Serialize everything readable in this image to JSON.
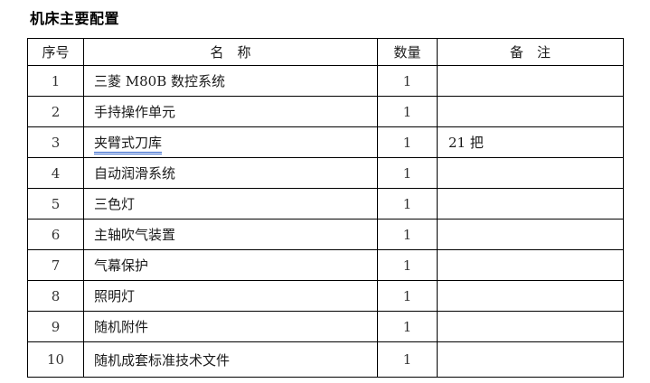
{
  "title": "机床主要配置",
  "table": {
    "headers": {
      "no": "序号",
      "name": "名　称",
      "qty": "数量",
      "note": "备　注"
    },
    "rows": [
      {
        "no": "1",
        "name": "三菱 M80B 数控系统",
        "qty": "1",
        "note": "",
        "grammar_underline": false
      },
      {
        "no": "2",
        "name": "手持操作单元",
        "qty": "1",
        "note": "",
        "grammar_underline": false
      },
      {
        "no": "3",
        "name": "夹臂式刀库",
        "qty": "1",
        "note": "21 把",
        "grammar_underline": true
      },
      {
        "no": "4",
        "name": "自动润滑系统",
        "qty": "1",
        "note": "",
        "grammar_underline": false
      },
      {
        "no": "5",
        "name": "三色灯",
        "qty": "1",
        "note": "",
        "grammar_underline": false
      },
      {
        "no": "6",
        "name": "主轴吹气装置",
        "qty": "1",
        "note": "",
        "grammar_underline": false
      },
      {
        "no": "7",
        "name": "气幕保护",
        "qty": "1",
        "note": "",
        "grammar_underline": false
      },
      {
        "no": "8",
        "name": "照明灯",
        "qty": "1",
        "note": "",
        "grammar_underline": false
      },
      {
        "no": "9",
        "name": "随机附件",
        "qty": "1",
        "note": "",
        "grammar_underline": false
      },
      {
        "no": "10",
        "name": "随机成套标准技术文件",
        "qty": "1",
        "note": "",
        "grammar_underline": false
      }
    ],
    "colors": {
      "border": "#000000",
      "grammar_underline": "#3366cc"
    }
  }
}
